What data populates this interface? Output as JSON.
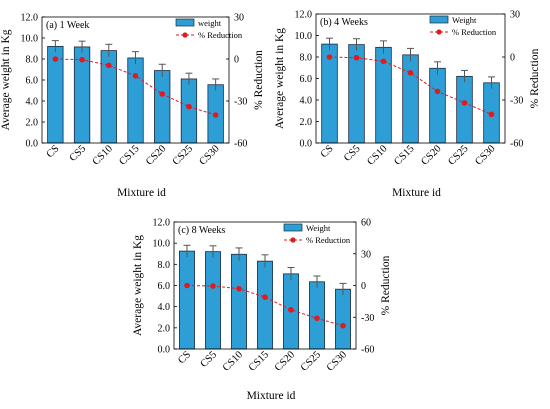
{
  "chart_data": [
    {
      "type": "bar",
      "panel_label": "(a) 1 Week",
      "xlabel": "Mixture id",
      "ylabel": "Average weight in Kg",
      "y2label": "% Reduction",
      "ylim": [
        0,
        12
      ],
      "yticks": [
        "0.0",
        "2.0",
        "4.0",
        "6.0",
        "8.0",
        "10.0",
        "12.0"
      ],
      "y2lim": [
        -60,
        30
      ],
      "y2ticks": [
        "-60",
        "-30",
        "0",
        "30"
      ],
      "categories": [
        "CS",
        "CS5",
        "CS10",
        "CS15",
        "CS20",
        "CS25",
        "CS30"
      ],
      "series": [
        {
          "name": "weight",
          "values": [
            9.2,
            9.15,
            8.8,
            8.1,
            6.9,
            6.1,
            5.55
          ],
          "error": [
            0.55,
            0.55,
            0.6,
            0.6,
            0.6,
            0.55,
            0.55
          ]
        },
        {
          "name": "% Reduction",
          "axis": "right",
          "values": [
            0,
            -0.5,
            -4.5,
            -12,
            -25,
            -34,
            -40
          ]
        }
      ],
      "legend_position": "top-right"
    },
    {
      "type": "bar",
      "panel_label": "(b) 4 Weeks",
      "xlabel": "Mixture id",
      "ylabel": "Average weight in Kg",
      "y2label": "% Reduction",
      "ylim": [
        0,
        12
      ],
      "yticks": [
        "0.0",
        "2.0",
        "4.0",
        "6.0",
        "8.0",
        "10.0",
        "12.0"
      ],
      "y2lim": [
        -60,
        30
      ],
      "y2ticks": [
        "-60",
        "-30",
        "0",
        "30"
      ],
      "categories": [
        "CS",
        "CS5",
        "CS10",
        "CS15",
        "CS20",
        "CS25",
        "CS30"
      ],
      "series": [
        {
          "name": "Weight",
          "values": [
            9.2,
            9.15,
            8.9,
            8.2,
            6.95,
            6.2,
            5.6
          ],
          "error": [
            0.55,
            0.55,
            0.6,
            0.6,
            0.6,
            0.55,
            0.55
          ]
        },
        {
          "name": "% Reduction",
          "axis": "right",
          "values": [
            0,
            -0.5,
            -3,
            -11,
            -24,
            -32,
            -40
          ]
        }
      ],
      "legend_position": "top-right"
    },
    {
      "type": "bar",
      "panel_label": "(c) 8 Weeks",
      "xlabel": "Mixture id",
      "ylabel": "Average weight in Kg",
      "y2label": "% Reduction",
      "ylim": [
        0,
        12
      ],
      "yticks": [
        "0.0",
        "2.0",
        "4.0",
        "6.0",
        "8.0",
        "10.0",
        "12.0"
      ],
      "y2lim": [
        -60,
        60
      ],
      "y2ticks": [
        "-60",
        "-30",
        "0",
        "30",
        "60"
      ],
      "categories": [
        "CS",
        "CS5",
        "CS10",
        "CS15",
        "CS20",
        "CS25",
        "CS30"
      ],
      "series": [
        {
          "name": "Weight",
          "values": [
            9.25,
            9.2,
            8.95,
            8.3,
            7.1,
            6.35,
            5.65
          ],
          "error": [
            0.55,
            0.55,
            0.6,
            0.6,
            0.6,
            0.55,
            0.55
          ]
        },
        {
          "name": "% Reduction",
          "axis": "right",
          "values": [
            0,
            -0.5,
            -3,
            -11,
            -23,
            -31,
            -38
          ]
        }
      ],
      "legend_position": "top-right"
    }
  ],
  "colors": {
    "bar_fill": "#2e9fd6",
    "bar_stroke": "#1b2a41",
    "errorbar": "#555555",
    "reduction_line": "#e31a1c"
  }
}
